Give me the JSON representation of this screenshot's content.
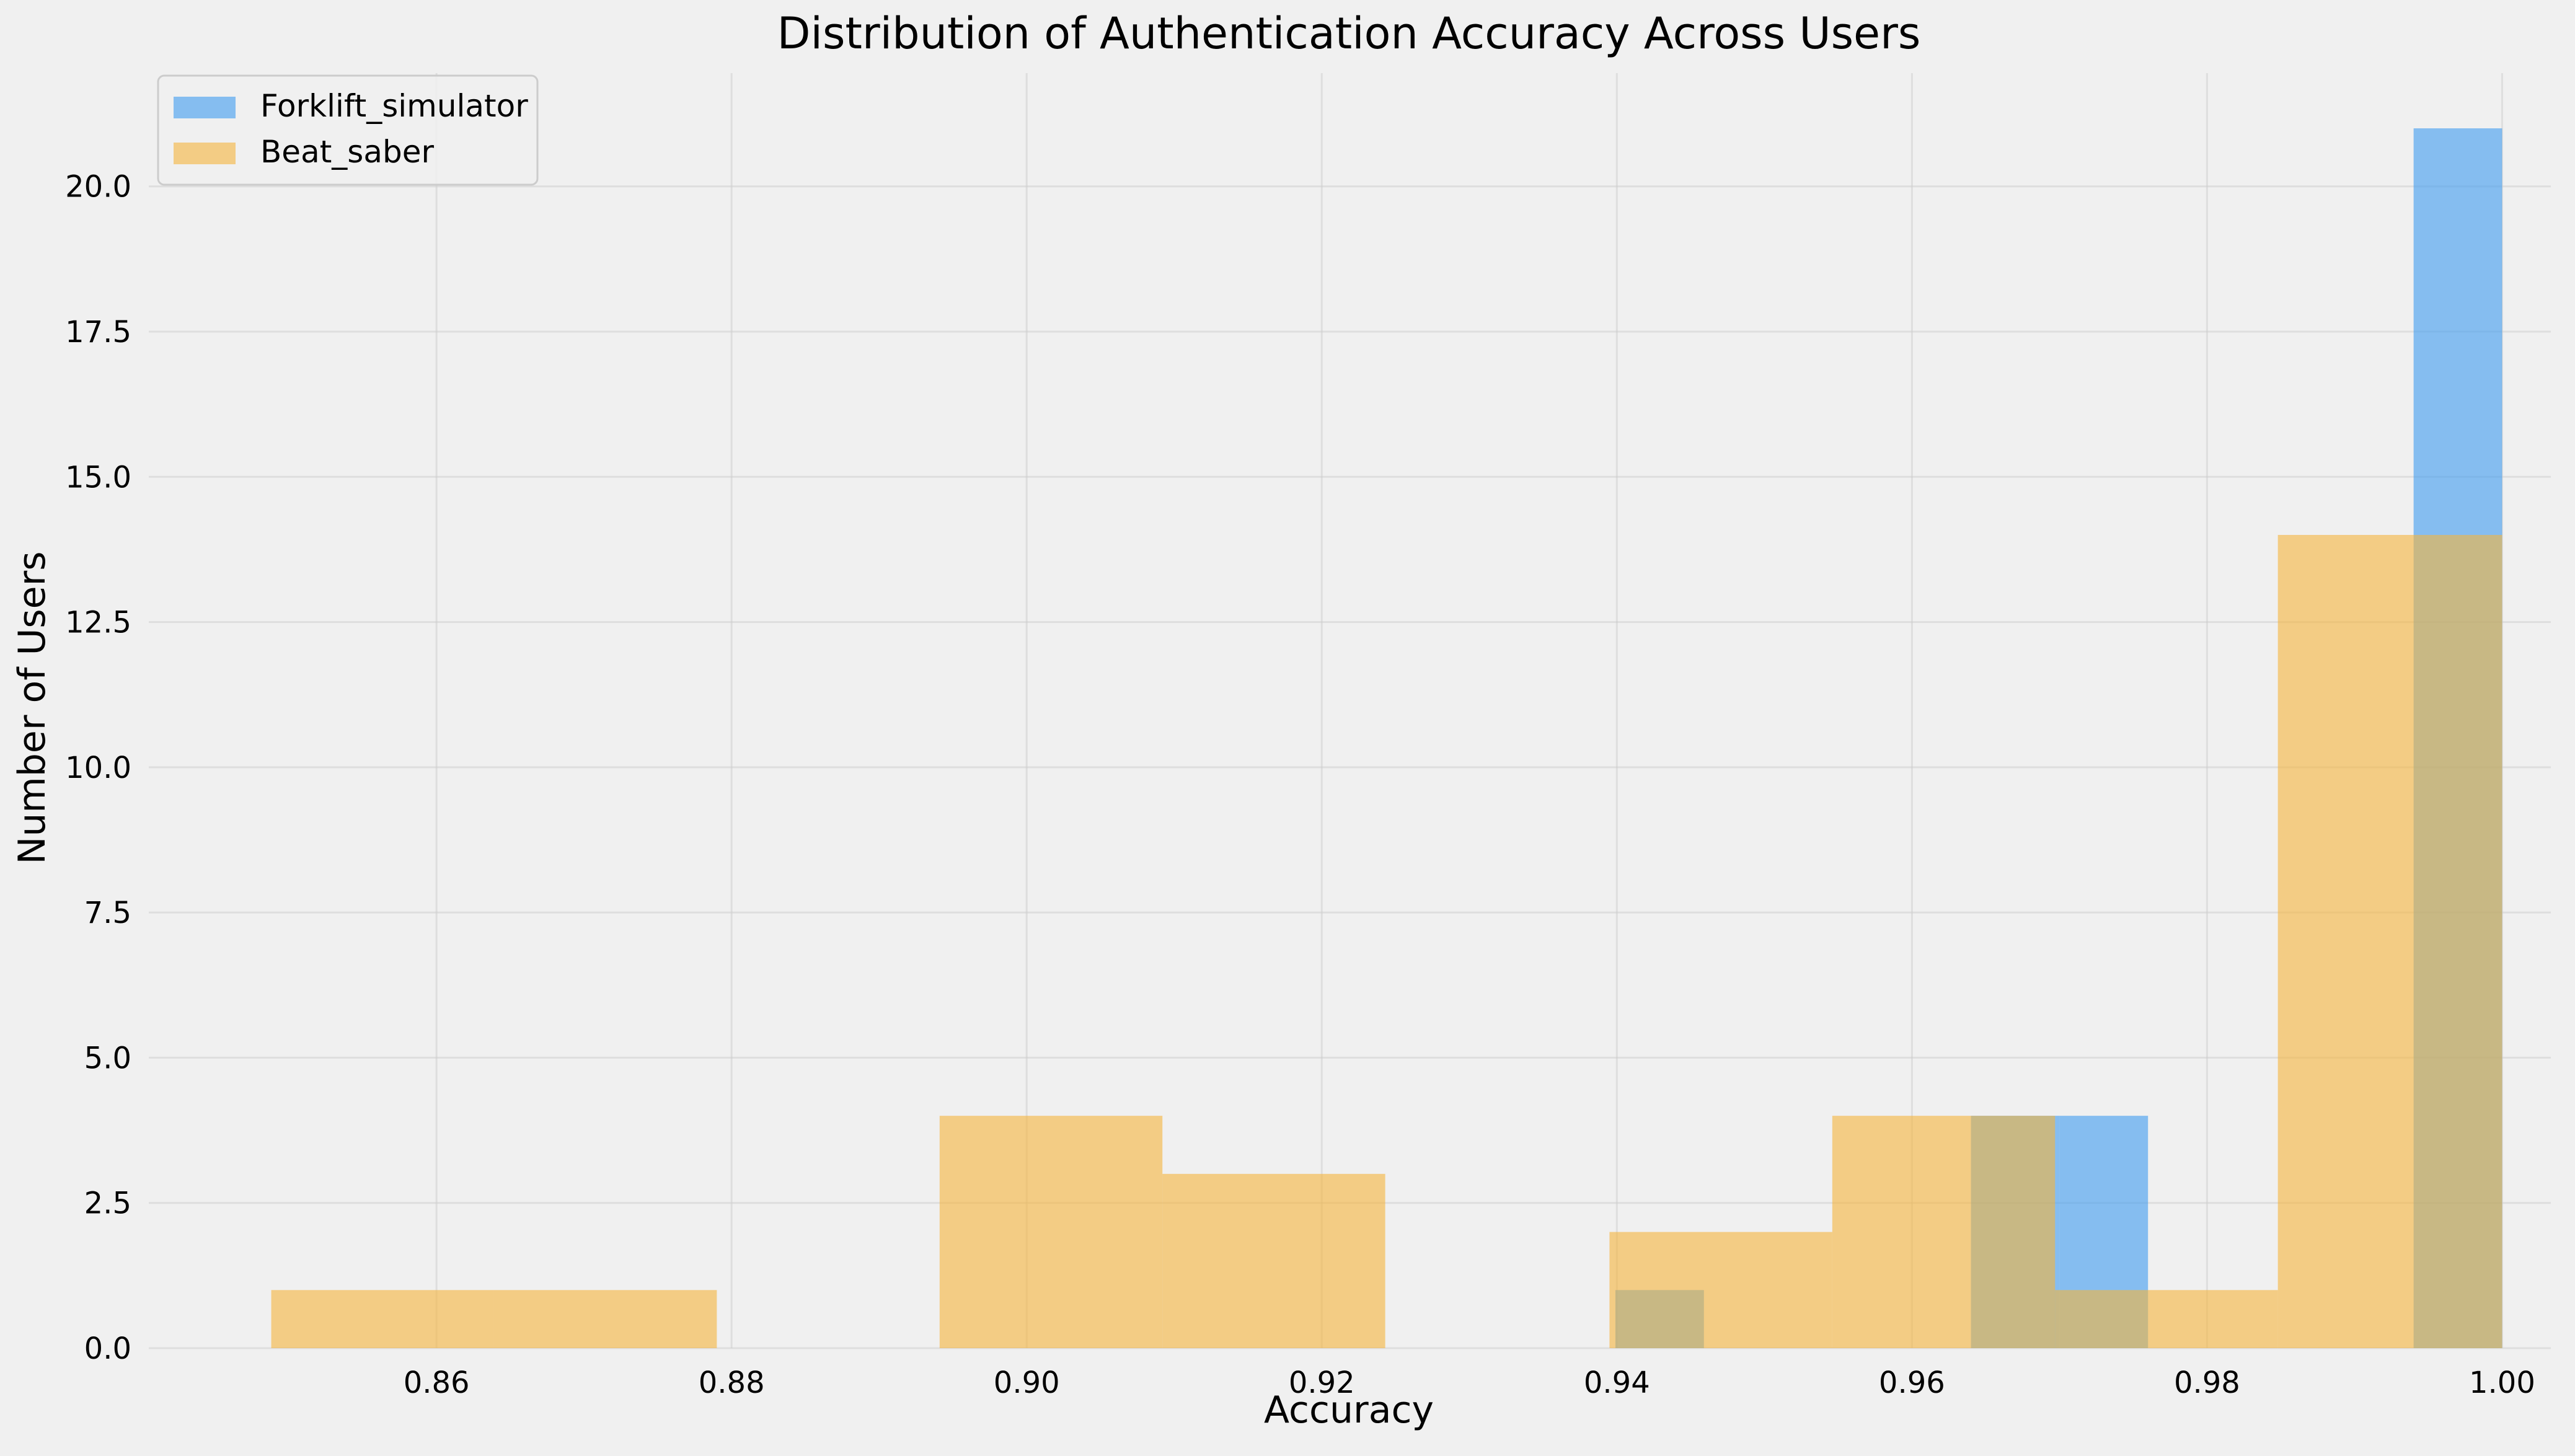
{
  "chart_data": {
    "type": "bar",
    "subtype": "histogram-overlay",
    "title": "Distribution of Authentication Accuracy Across Users",
    "xlabel": "Accuracy",
    "ylabel": "Number of Users",
    "xlim": [
      0.8405,
      1.0033
    ],
    "ylim": [
      0,
      21.95
    ],
    "x_ticks": [
      0.86,
      0.88,
      0.9,
      0.92,
      0.94,
      0.96,
      0.98,
      1.0
    ],
    "x_tick_labels": [
      "0.86",
      "0.88",
      "0.90",
      "0.92",
      "0.94",
      "0.96",
      "0.98",
      "1.00"
    ],
    "y_ticks": [
      0,
      2.5,
      5,
      7.5,
      10,
      12.5,
      15,
      17.5,
      20
    ],
    "y_tick_labels": [
      "0.0",
      "2.5",
      "5.0",
      "7.5",
      "10.0",
      "12.5",
      "15.0",
      "17.5",
      "20.0"
    ],
    "grid": true,
    "legend_position": "top-left",
    "series": [
      {
        "name": "Forklift_simulator",
        "color": "#3d9bf0",
        "bin_edges": [
          0.9399,
          0.9459,
          0.952,
          0.958,
          0.964,
          0.97,
          0.976,
          0.982,
          0.988,
          0.994,
          1.0
        ],
        "values": [
          1,
          0,
          0,
          0,
          4,
          4,
          0,
          0,
          0,
          21
        ]
      },
      {
        "name": "Beat_saber",
        "color": "#f5b43c",
        "bin_edges": [
          0.8488,
          0.8639,
          0.879,
          0.8941,
          0.9092,
          0.9243,
          0.9395,
          0.9546,
          0.9697,
          0.9848,
          1.0
        ],
        "values": [
          1,
          1,
          0,
          4,
          3,
          0,
          2,
          4,
          1,
          14
        ]
      }
    ]
  }
}
